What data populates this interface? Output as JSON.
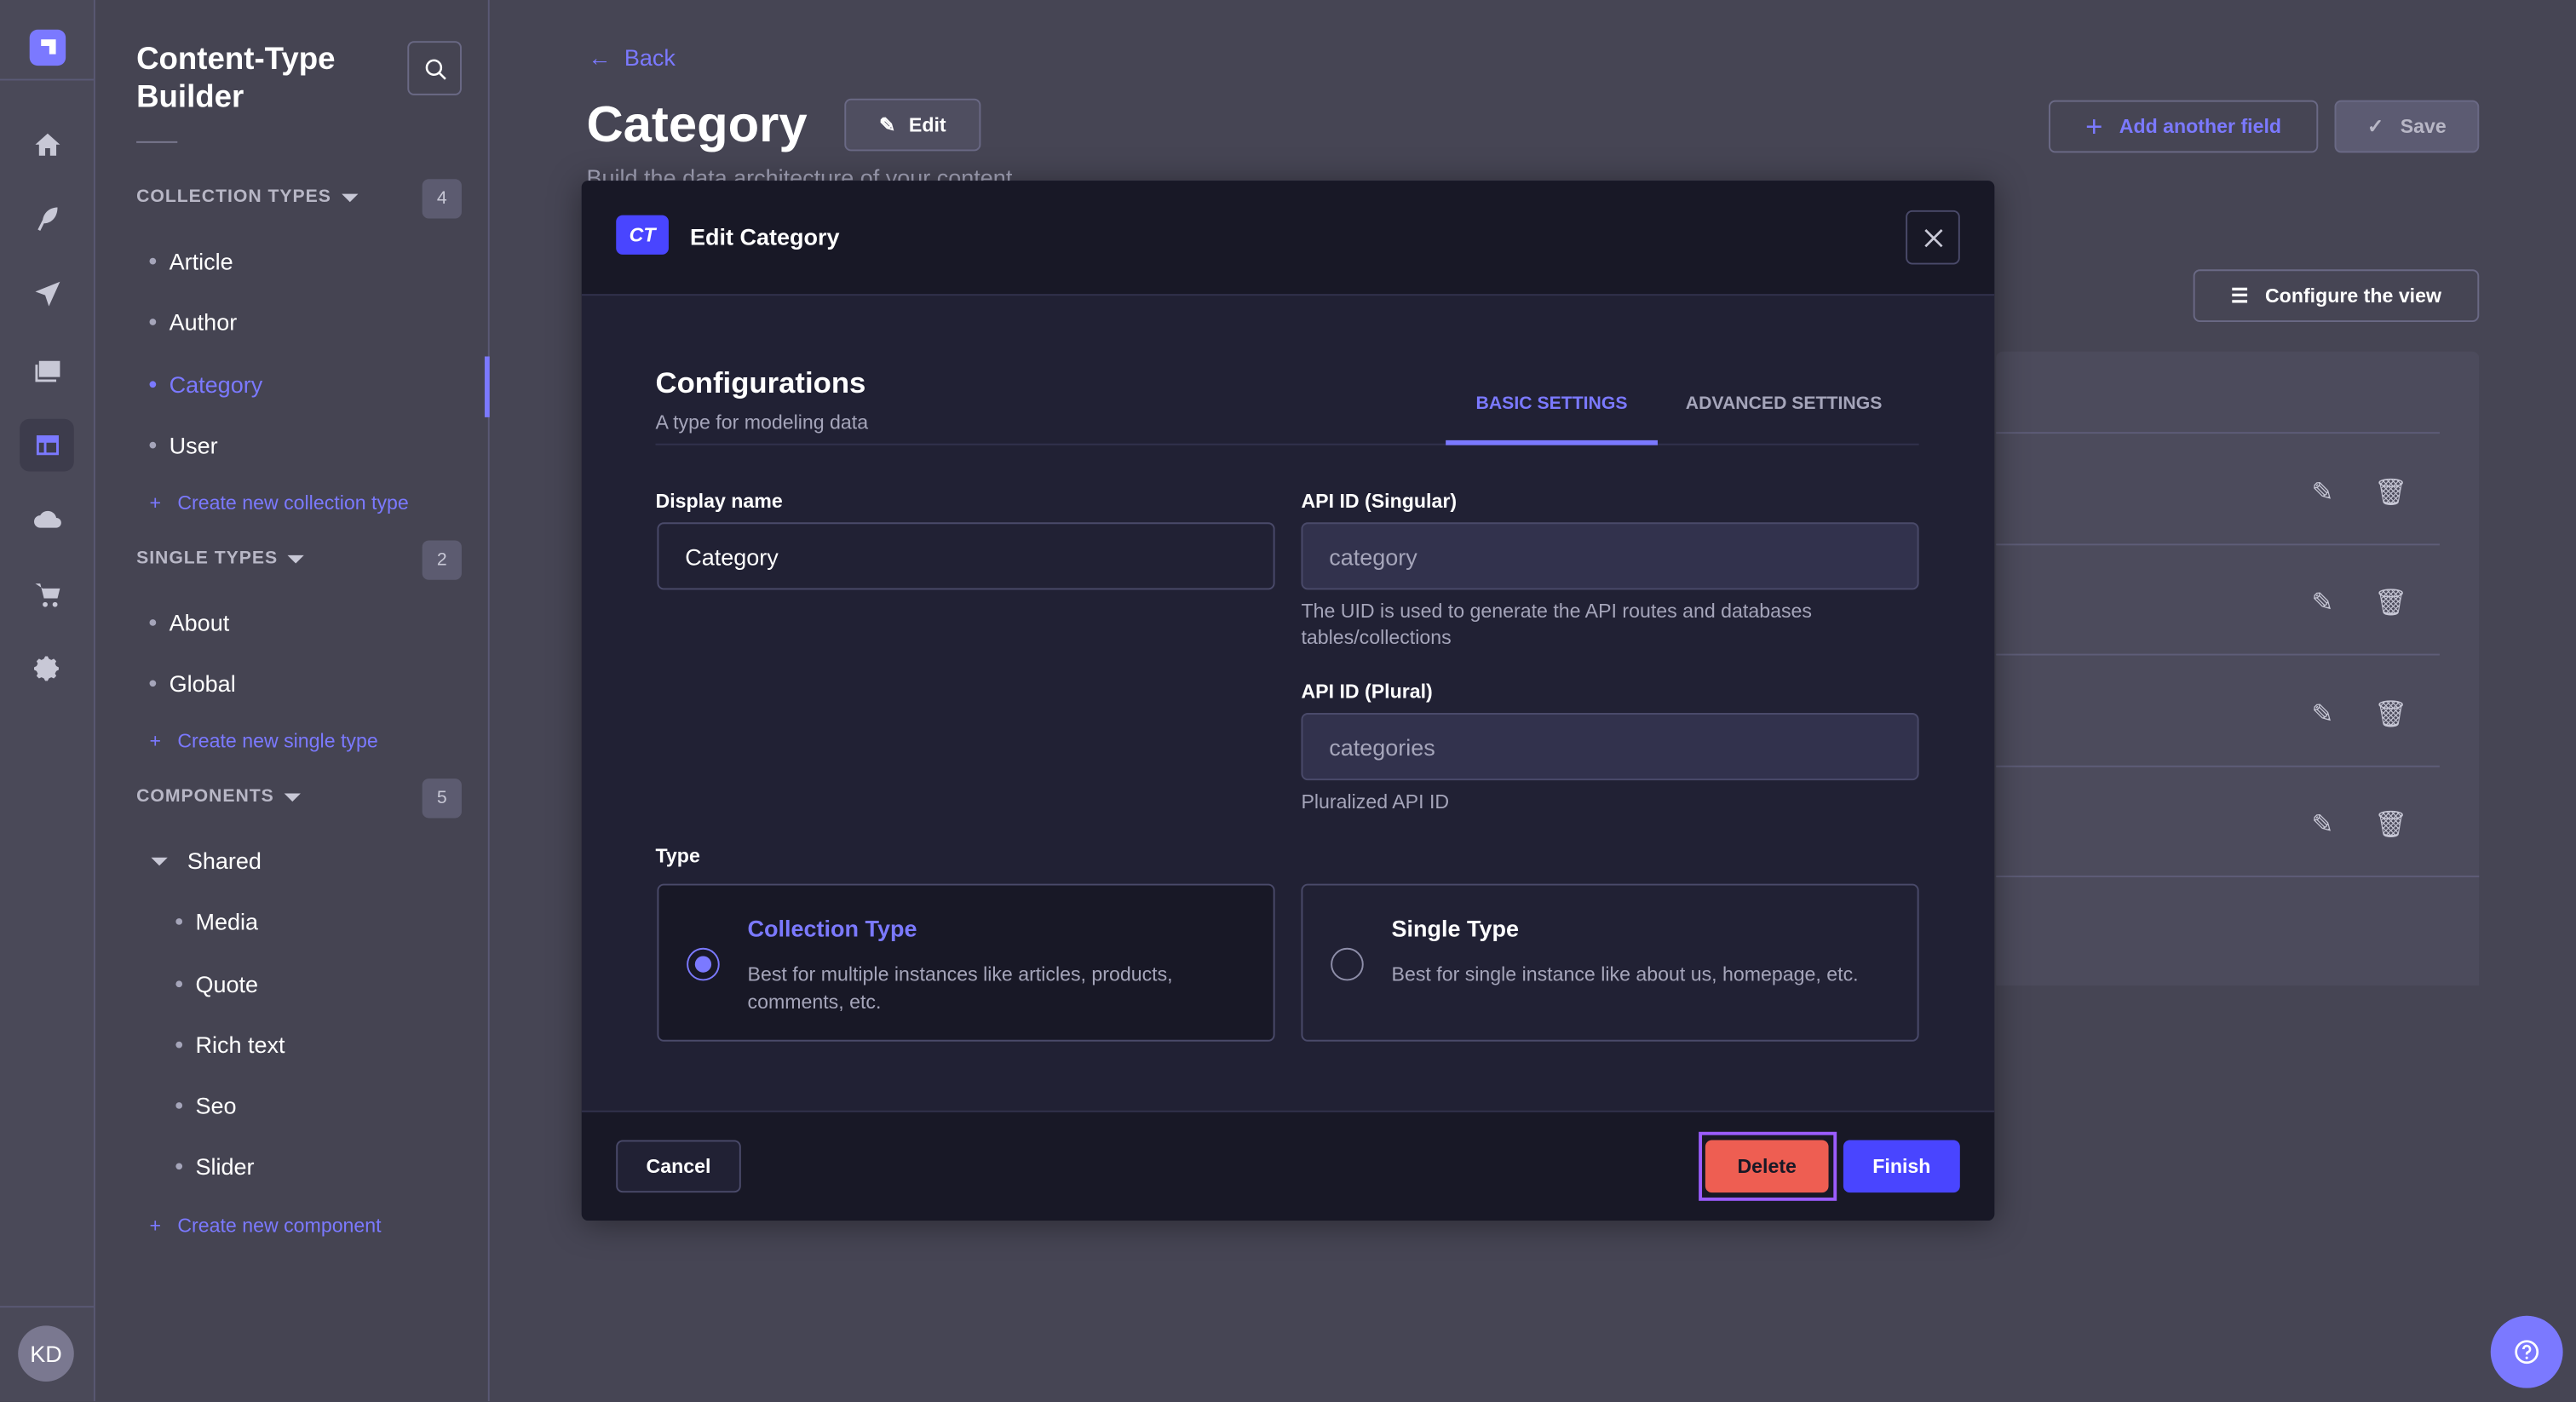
{
  "rail": {
    "icons": [
      "logo-icon",
      "home-icon",
      "feather-icon",
      "paper-plane-icon",
      "media-library-icon",
      "content-type-builder-icon",
      "cloud-icon",
      "cart-icon",
      "gear-icon"
    ],
    "avatar": "KD"
  },
  "sidebar": {
    "title": "Content-Type Builder",
    "collection_types": {
      "header": "COLLECTION TYPES",
      "count": "4",
      "items": [
        "Article",
        "Author",
        "Category",
        "User"
      ],
      "active": "Category",
      "create": "Create new collection type"
    },
    "single_types": {
      "header": "SINGLE TYPES",
      "count": "2",
      "items": [
        "About",
        "Global"
      ],
      "create": "Create new single type"
    },
    "components": {
      "header": "COMPONENTS",
      "count": "5",
      "group": "Shared",
      "items": [
        "Media",
        "Quote",
        "Rich text",
        "Seo",
        "Slider"
      ],
      "create": "Create new component"
    }
  },
  "main": {
    "back": "Back",
    "title": "Category",
    "edit": "Edit",
    "subtitle": "Build the data architecture of your content",
    "add_field": "Add another field",
    "save": "Save",
    "configure_view": "Configure the view"
  },
  "modal": {
    "badge": "CT",
    "title": "Edit Category",
    "section_title": "Configurations",
    "section_subtitle": "A type for modeling data",
    "tabs": [
      "BASIC SETTINGS",
      "ADVANCED SETTINGS"
    ],
    "active_tab": "BASIC SETTINGS",
    "display_name": {
      "label": "Display name",
      "value": "Category"
    },
    "api_singular": {
      "label": "API ID (Singular)",
      "value": "category",
      "hint": "The UID is used to generate the API routes and databases tables/collections"
    },
    "api_plural": {
      "label": "API ID (Plural)",
      "value": "categories",
      "hint": "Pluralized API ID"
    },
    "type_label": "Type",
    "types": [
      {
        "title": "Collection Type",
        "desc": "Best for multiple instances like articles, products, comments, etc.",
        "selected": true
      },
      {
        "title": "Single Type",
        "desc": "Best for single instance like about us, homepage, etc.",
        "selected": false
      }
    ],
    "cancel": "Cancel",
    "delete": "Delete",
    "finish": "Finish"
  },
  "colors": {
    "accent": "#7b79ff",
    "primary": "#4945ff",
    "danger": "#ee5e52",
    "focus": "#9b5cff"
  }
}
